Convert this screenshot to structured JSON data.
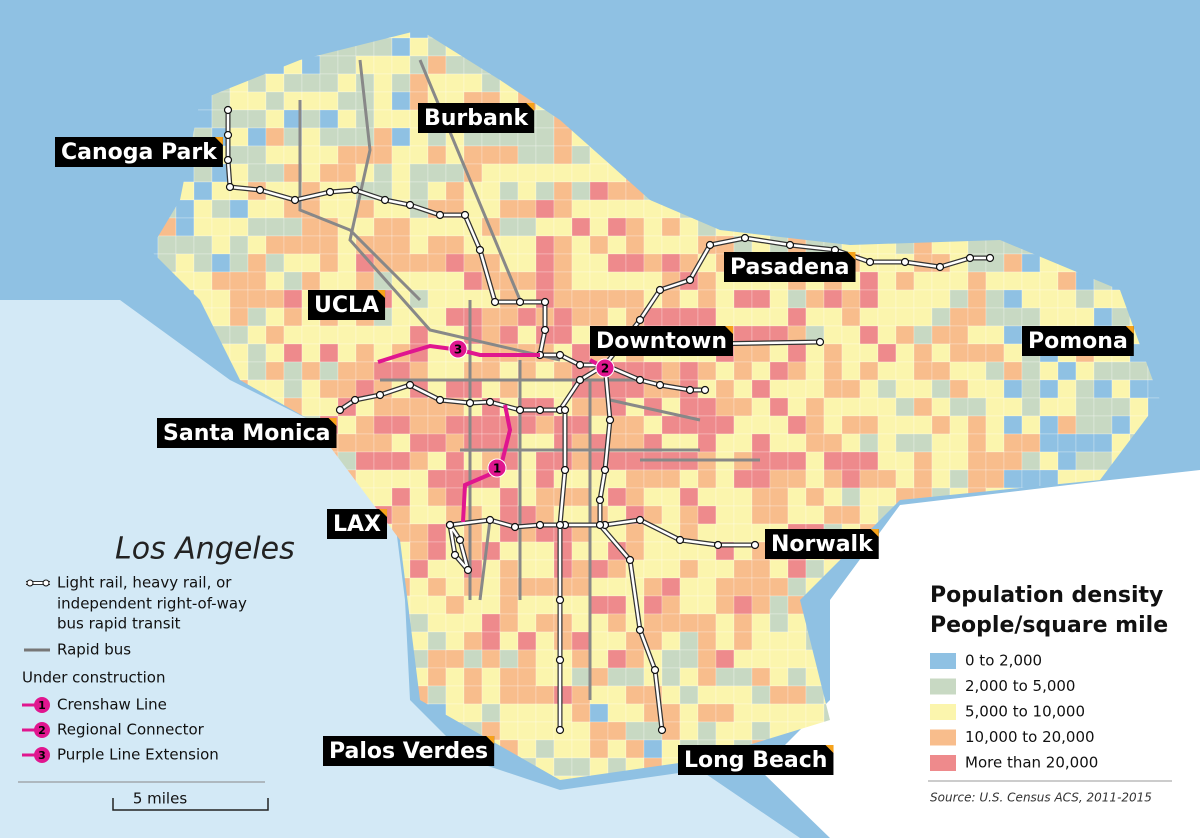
{
  "title": "Los Angeles",
  "places": [
    "Canoga Park",
    "Burbank",
    "UCLA",
    "Pasadena",
    "Downtown",
    "Pomona",
    "Santa Monica",
    "LAX",
    "Norwalk",
    "Palos Verdes",
    "Long Beach"
  ],
  "transit_legend": {
    "rail": [
      "Light rail, heavy rail, or",
      "independent right-of-way",
      "bus rapid transit"
    ],
    "rapid_bus": "Rapid bus",
    "under_construction": "Under construction",
    "lines": [
      {
        "number": "1",
        "name": "Crenshaw Line"
      },
      {
        "number": "2",
        "name": "Regional Connector"
      },
      {
        "number": "3",
        "name": "Purple Line Extension"
      }
    ]
  },
  "scale": "5 miles",
  "density_legend": {
    "title": "Population density",
    "subtitle": "People/square mile",
    "classes": [
      {
        "label": "0 to 2,000",
        "color": "#8fc1e3"
      },
      {
        "label": "2,000 to 5,000",
        "color": "#c8d9c3"
      },
      {
        "label": "5,000 to 10,000",
        "color": "#fbf5ad"
      },
      {
        "label": "10,000 to 20,000",
        "color": "#f8bd8c"
      },
      {
        "label": "More than 20,000",
        "color": "#ee8a8c"
      }
    ],
    "source": "Source: U.S. Census ACS, 2011-2015"
  }
}
